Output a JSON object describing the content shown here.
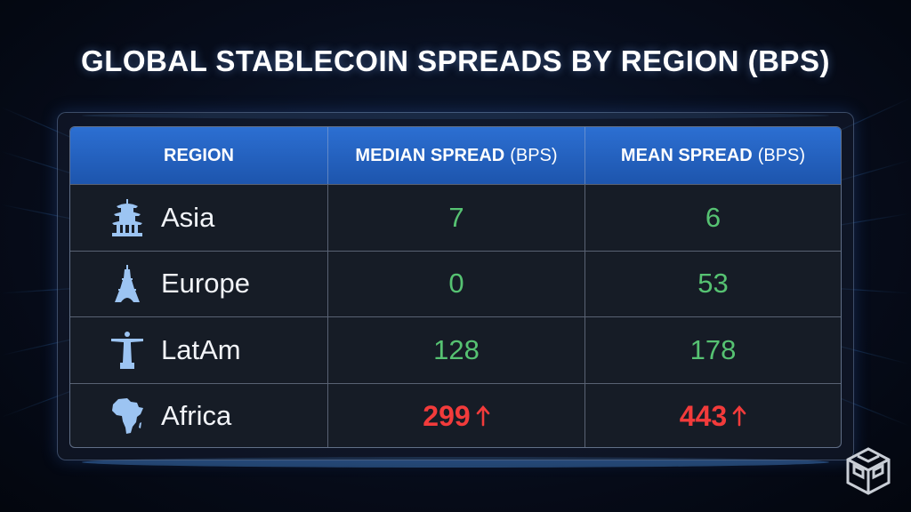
{
  "title": "GLOBAL STABLECOIN SPREADS BY REGION (BPS)",
  "colors": {
    "header_blue": "#2c6fd2",
    "positive_green": "#56c272",
    "alert_red": "#f23b3b"
  },
  "chart_data": {
    "type": "table",
    "title": "GLOBAL STABLECOIN SPREADS BY REGION (BPS)",
    "columns": [
      {
        "label": "REGION",
        "unit": ""
      },
      {
        "label": "MEDIAN SPREAD",
        "unit": "(BPS)"
      },
      {
        "label": "MEAN SPREAD",
        "unit": "(BPS)"
      }
    ],
    "rows": [
      {
        "region": "Asia",
        "icon": "pagoda-icon",
        "median": "7",
        "mean": "6",
        "highlight": false
      },
      {
        "region": "Europe",
        "icon": "eiffel-tower-icon",
        "median": "0",
        "mean": "53",
        "highlight": false
      },
      {
        "region": "LatAm",
        "icon": "christ-redeemer-icon",
        "median": "128",
        "mean": "178",
        "highlight": false
      },
      {
        "region": "Africa",
        "icon": "africa-map-icon",
        "median": "299",
        "mean": "443",
        "highlight": true
      }
    ]
  }
}
